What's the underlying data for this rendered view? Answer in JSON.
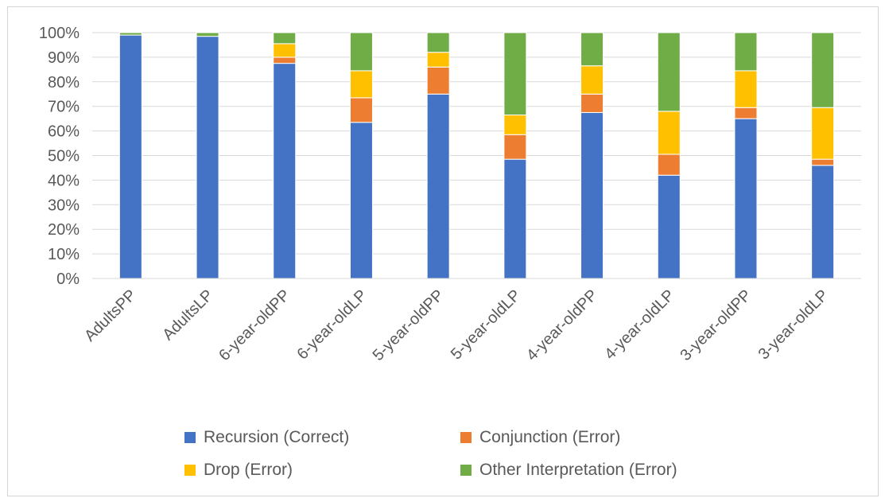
{
  "chart_data": {
    "type": "bar",
    "stacked": true,
    "title": "",
    "xlabel": "",
    "ylabel": "",
    "ylim": [
      0,
      100
    ],
    "y_ticks": [
      "0%",
      "10%",
      "20%",
      "30%",
      "40%",
      "50%",
      "60%",
      "70%",
      "80%",
      "90%",
      "100%"
    ],
    "grid": true,
    "legend_position": "bottom",
    "categories": [
      "AdultsPP",
      "AdultsLP",
      "6-year-oldPP",
      "6-year-oldLP",
      "5-year-oldPP",
      "5-year-oldLP",
      "4-year-oldPP",
      "4-year-oldLP",
      "3-year-oldPP",
      "3-year-oldLP"
    ],
    "series": [
      {
        "name": "Recursion (Correct)",
        "color": "#4472C4",
        "values": [
          99,
          98.5,
          87.5,
          63.5,
          75,
          48.5,
          67.5,
          42,
          65,
          46
        ]
      },
      {
        "name": "Conjunction (Error)",
        "color": "#ED7D31",
        "values": [
          0,
          0,
          2.5,
          10,
          11,
          10,
          7.5,
          8.5,
          4.5,
          2.5
        ]
      },
      {
        "name": "Drop (Error)",
        "color": "#FFC000",
        "values": [
          0,
          0,
          5.5,
          11,
          6,
          8,
          11.5,
          17.5,
          15,
          21
        ]
      },
      {
        "name": "Other Interpretation (Error)",
        "color": "#70AD47",
        "values": [
          1,
          1.5,
          4.5,
          15.5,
          8,
          33.5,
          13.5,
          32,
          15.5,
          30.5
        ]
      }
    ]
  }
}
